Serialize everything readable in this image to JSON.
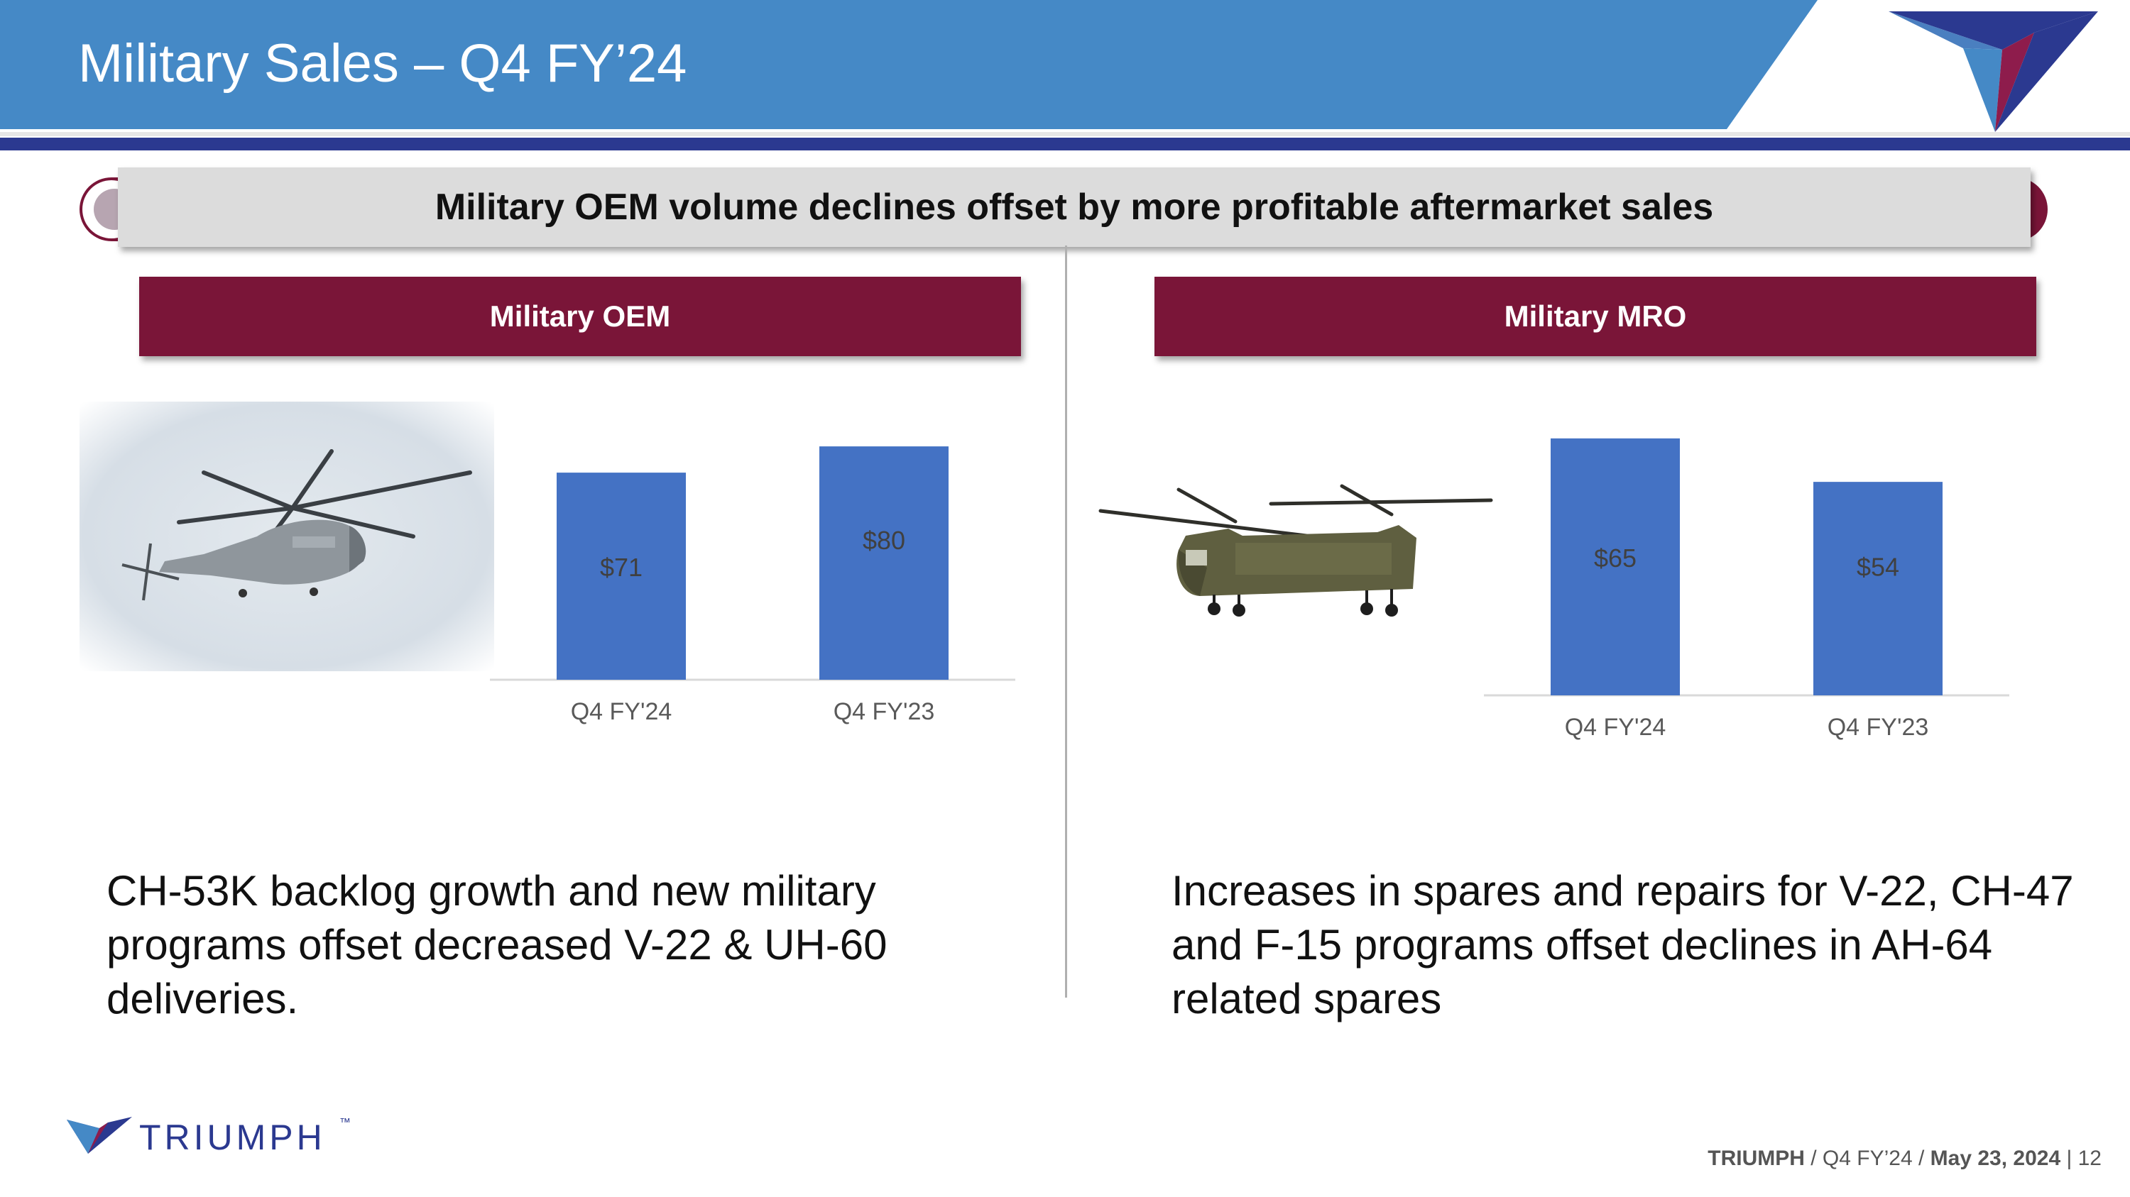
{
  "header": {
    "title": "Military Sales – Q4 FY’24"
  },
  "banner": {
    "text": "Military OEM volume declines offset by more profitable aftermarket sales"
  },
  "panels": {
    "oem": {
      "title": "Military OEM",
      "caption": "CH-53K backlog growth and new military programs offset decreased V-22 & UH-60 deliveries."
    },
    "mro": {
      "title": "Military MRO",
      "caption": "Increases in spares and repairs for V-22, CH-47 and F-15 programs offset declines in AH-64 related spares"
    }
  },
  "chart_data": [
    {
      "type": "bar",
      "title": "Military OEM",
      "categories": [
        "Q4 FY'24",
        "Q4 FY'23"
      ],
      "values": [
        71,
        80
      ],
      "data_labels": [
        "$71",
        "$80"
      ],
      "ylim": [
        0,
        90
      ],
      "grid": false,
      "color": "#4472c4"
    },
    {
      "type": "bar",
      "title": "Military MRO",
      "categories": [
        "Q4 FY'24",
        "Q4 FY'23"
      ],
      "values": [
        65,
        54
      ],
      "data_labels": [
        "$65",
        "$54"
      ],
      "ylim": [
        0,
        70
      ],
      "grid": false,
      "color": "#4472c4"
    }
  ],
  "logo": {
    "wordmark": "TRIUMPH",
    "tm": "™"
  },
  "footer": {
    "company": "TRIUMPH",
    "sep1": " / ",
    "period": "Q4 FY’24",
    "sep2": " / ",
    "date": "May 23, 2024",
    "sep3": "  |  ",
    "page": "12"
  },
  "colors": {
    "header_blue": "#4589c6",
    "navy": "#2b3990",
    "maroon": "#7a1538",
    "bar_blue": "#4472c4"
  }
}
